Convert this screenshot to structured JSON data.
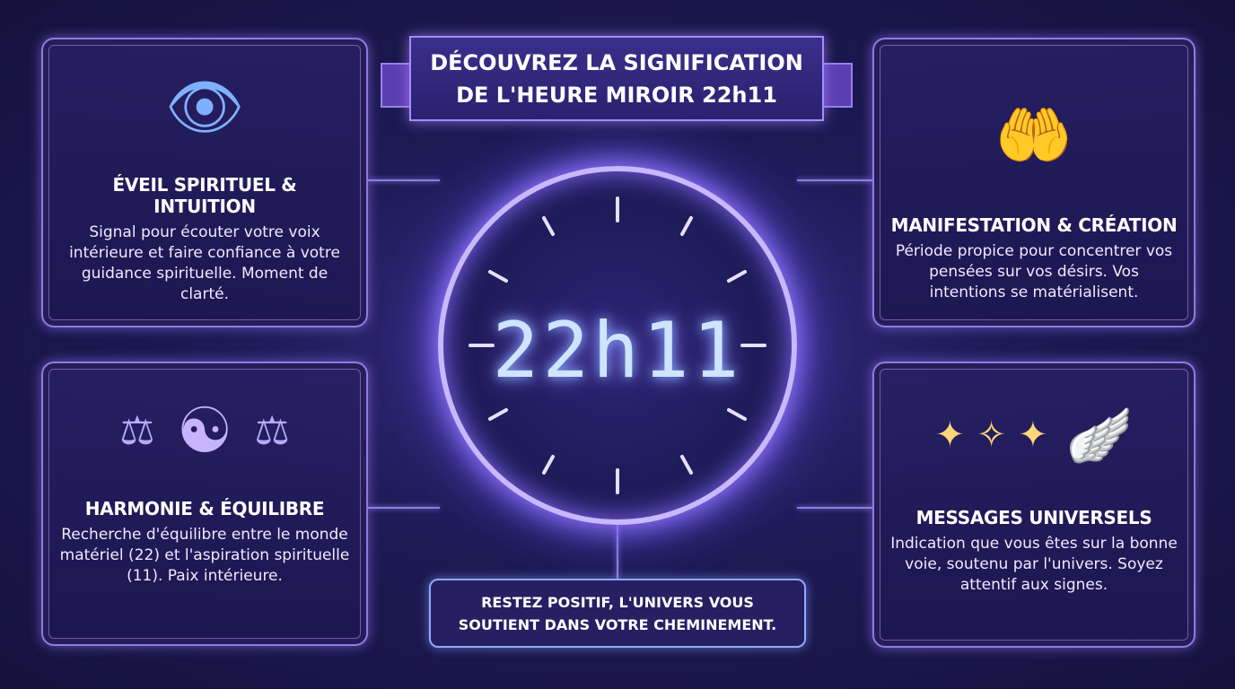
{
  "banner": {
    "line1": "DÉCOUVREZ LA SIGNIFICATION",
    "line2": "DE L'HEURE MIROIR 22h11"
  },
  "clock": {
    "time": "22h11"
  },
  "cards": [
    {
      "icon": "eye-icon",
      "title": "ÉVEIL SPIRITUEL & INTUITION",
      "text": "Signal pour écouter votre voix intérieure et faire confiance à votre guidance spirituelle. Moment de clarté."
    },
    {
      "icon": "yin-yang-heart-icon",
      "title": "HARMONIE & ÉQUILIBRE",
      "text": "Recherche d'équilibre entre le monde matériel (22) et l'aspiration spirituelle (11). Paix intérieure."
    },
    {
      "icon": "hands-globe-icon",
      "title": "MANIFESTATION & CRÉATION",
      "text": "Période propice pour concentrer vos pensées sur vos désirs. Vos intentions se matérialisent."
    },
    {
      "icon": "constellation-wing-icon",
      "title": "MESSAGES UNIVERSELS",
      "text": "Indication que vous êtes sur la bonne voie, soutenu par l'univers. Soyez attentif aux signes."
    }
  ],
  "message": {
    "line1": "RESTEZ POSITIF, L'UNIVERS VOUS",
    "line2": "SOUTIENT DANS VOTRE CHEMINEMENT."
  }
}
